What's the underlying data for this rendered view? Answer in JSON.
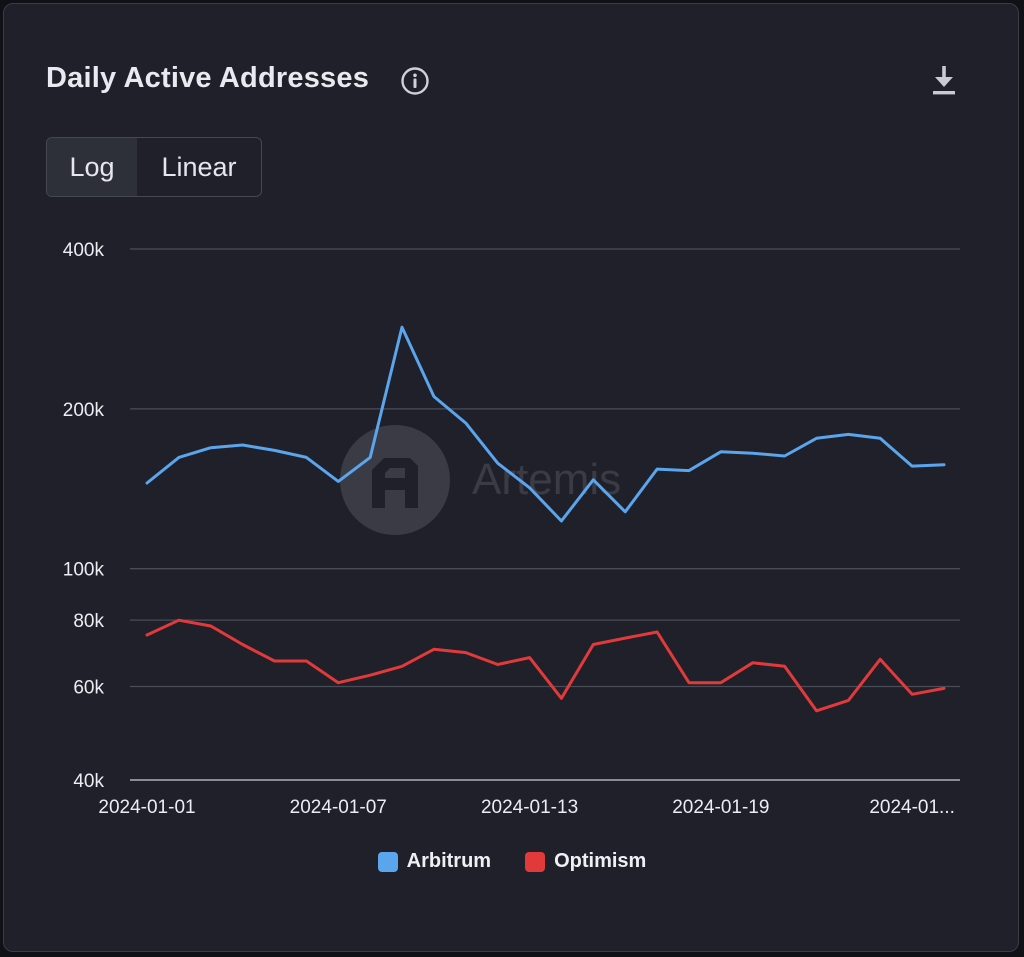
{
  "title": "Daily Active Addresses",
  "toggle": {
    "log_label": "Log",
    "linear_label": "Linear",
    "selected": "Log"
  },
  "watermark": "Artemis",
  "colors": {
    "arbitrum": "#5aa5ec",
    "optimism": "#e23a3a",
    "grid": "#4a4c58",
    "axis_text": "#ececf1"
  },
  "chart_data": {
    "type": "line",
    "title": "Daily Active Addresses",
    "y_scale": "log",
    "ylim": [
      40000,
      400000
    ],
    "y_ticks": [
      40000,
      60000,
      80000,
      100000,
      200000,
      400000
    ],
    "y_tick_labels": [
      "40k",
      "60k",
      "80k",
      "100k",
      "200k",
      "400k"
    ],
    "x_tick_labels": [
      "2024-01-01",
      "2024-01-07",
      "2024-01-13",
      "2024-01-19",
      "2024-01..."
    ],
    "x_tick_indices": [
      0,
      6,
      12,
      18,
      24
    ],
    "x": [
      "2024-01-01",
      "2024-01-02",
      "2024-01-03",
      "2024-01-04",
      "2024-01-05",
      "2024-01-06",
      "2024-01-07",
      "2024-01-08",
      "2024-01-09",
      "2024-01-10",
      "2024-01-11",
      "2024-01-12",
      "2024-01-13",
      "2024-01-14",
      "2024-01-15",
      "2024-01-16",
      "2024-01-17",
      "2024-01-18",
      "2024-01-19",
      "2024-01-20",
      "2024-01-21",
      "2024-01-22",
      "2024-01-23",
      "2024-01-24",
      "2024-01-25",
      "2024-01-26"
    ],
    "series": [
      {
        "name": "Arbitrum",
        "color": "#5aa5ec",
        "values": [
          145000,
          162000,
          169000,
          171000,
          167000,
          162000,
          146000,
          162000,
          285000,
          211000,
          188000,
          158000,
          142000,
          123000,
          147000,
          128000,
          154000,
          153000,
          166000,
          165000,
          163000,
          176000,
          179000,
          176000,
          156000,
          157000
        ]
      },
      {
        "name": "Optimism",
        "color": "#e23a3a",
        "values": [
          75000,
          80000,
          78000,
          72000,
          67000,
          67000,
          61000,
          63000,
          65500,
          70500,
          69500,
          66000,
          68000,
          57000,
          72000,
          74000,
          76000,
          61000,
          61000,
          66500,
          65500,
          54000,
          56500,
          67500,
          58000,
          59500
        ]
      }
    ],
    "legend": [
      "Arbitrum",
      "Optimism"
    ],
    "legend_position": "bottom-center"
  }
}
